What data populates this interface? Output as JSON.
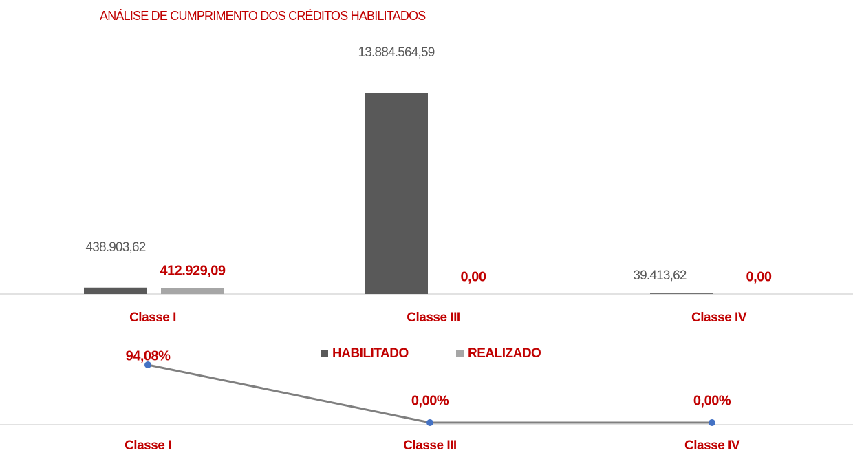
{
  "chart_data": [
    {
      "type": "bar",
      "title": "ANÁLISE DE CUMPRIMENTO DOS CRÉDITOS HABILITADOS",
      "categories": [
        "Classe I",
        "Classe III",
        "Classe IV"
      ],
      "series": [
        {
          "name": "HABILITADO",
          "color": "#595959",
          "values": [
            438903.62,
            13884564.59,
            39413.62
          ],
          "value_labels": [
            "438.903,62",
            "13.884.564,59",
            "39.413,62"
          ]
        },
        {
          "name": "REALIZADO",
          "color": "#a6a6a6",
          "values": [
            412929.09,
            0,
            0
          ],
          "value_labels": [
            "412.929,09",
            "0,00",
            "0,00"
          ]
        }
      ],
      "legend": "bottom"
    },
    {
      "type": "line",
      "categories": [
        "Classe I",
        "Classe III",
        "Classe IV"
      ],
      "values": [
        94.08,
        0,
        0
      ],
      "value_labels": [
        "94,08%",
        "0,00%",
        "0,00%"
      ],
      "color": "#7f7f7f",
      "marker_color": "#4472c4"
    }
  ]
}
